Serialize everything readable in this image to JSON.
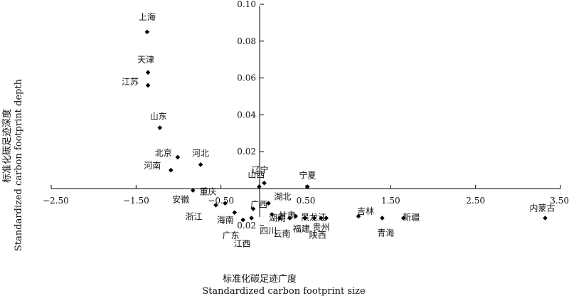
{
  "chart_data": {
    "type": "scatter",
    "xlabel_cn": "标准化碳足迹广度",
    "xlabel_en": "Standardized carbon footprint size",
    "ylabel_cn": "标准化碳足迹深度",
    "ylabel_en": "Standardized carbon footprint depth",
    "xlim": [
      -2.5,
      3.5
    ],
    "ylim": [
      -0.04,
      0.1
    ],
    "x_ticks": [
      -2.5,
      -1.5,
      -0.5,
      0.5,
      1.5,
      2.5,
      3.5
    ],
    "x_tick_labels": [
      "−2.50",
      "−1.50",
      "−0.50",
      "0.50",
      "1.50",
      "2.50",
      "3.50"
    ],
    "y_ticks": [
      0.02,
      0.04,
      0.06,
      0.08,
      0.1
    ],
    "y_tick_labels": [
      "0.02",
      "0.04",
      "0.06",
      "0.08",
      "0.10"
    ],
    "y_tick_labels_negative": [
      {
        "value": -0.02,
        "label": "0.02"
      }
    ],
    "points": [
      {
        "name": "上海",
        "x": -1.37,
        "y": 0.085
      },
      {
        "name": "天津",
        "x": -1.36,
        "y": 0.063
      },
      {
        "name": "江苏",
        "x": -1.36,
        "y": 0.056
      },
      {
        "name": "山东",
        "x": -1.22,
        "y": 0.033
      },
      {
        "name": "北京",
        "x": -1.01,
        "y": 0.017
      },
      {
        "name": "河北",
        "x": -0.74,
        "y": 0.013
      },
      {
        "name": "河南",
        "x": -1.09,
        "y": 0.01
      },
      {
        "name": "安徽",
        "x": -0.83,
        "y": -0.001
      },
      {
        "name": "重庆",
        "x": -0.45,
        "y": -0.008
      },
      {
        "name": "浙江",
        "x": -0.56,
        "y": -0.009
      },
      {
        "name": "海南",
        "x": -0.34,
        "y": -0.013
      },
      {
        "name": "广东",
        "x": -0.24,
        "y": -0.017
      },
      {
        "name": "广西",
        "x": -0.12,
        "y": -0.011
      },
      {
        "name": "江西",
        "x": -0.14,
        "y": -0.016
      },
      {
        "name": "山西",
        "x": -0.05,
        "y": 0.001
      },
      {
        "name": "辽宁",
        "x": 0.01,
        "y": 0.003
      },
      {
        "name": "湖北",
        "x": 0.06,
        "y": -0.008
      },
      {
        "name": "四川",
        "x": 0.1,
        "y": -0.014
      },
      {
        "name": "湖南",
        "x": 0.19,
        "y": -0.016
      },
      {
        "name": "云南",
        "x": 0.31,
        "y": -0.016
      },
      {
        "name": "甘肃",
        "x": 0.38,
        "y": -0.015
      },
      {
        "name": "福建",
        "x": 0.49,
        "y": -0.016
      },
      {
        "name": "黑龙江",
        "x": 0.6,
        "y": -0.016
      },
      {
        "name": "贵州",
        "x": 0.68,
        "y": -0.016
      },
      {
        "name": "陕西",
        "x": 0.74,
        "y": -0.016
      },
      {
        "name": "宁夏",
        "x": 0.52,
        "y": 0.001
      },
      {
        "name": "吉林",
        "x": 1.12,
        "y": -0.015
      },
      {
        "name": "青海",
        "x": 1.4,
        "y": -0.016
      },
      {
        "name": "新疆",
        "x": 1.65,
        "y": -0.016
      },
      {
        "name": "内蒙古",
        "x": 3.32,
        "y": -0.016
      }
    ]
  }
}
